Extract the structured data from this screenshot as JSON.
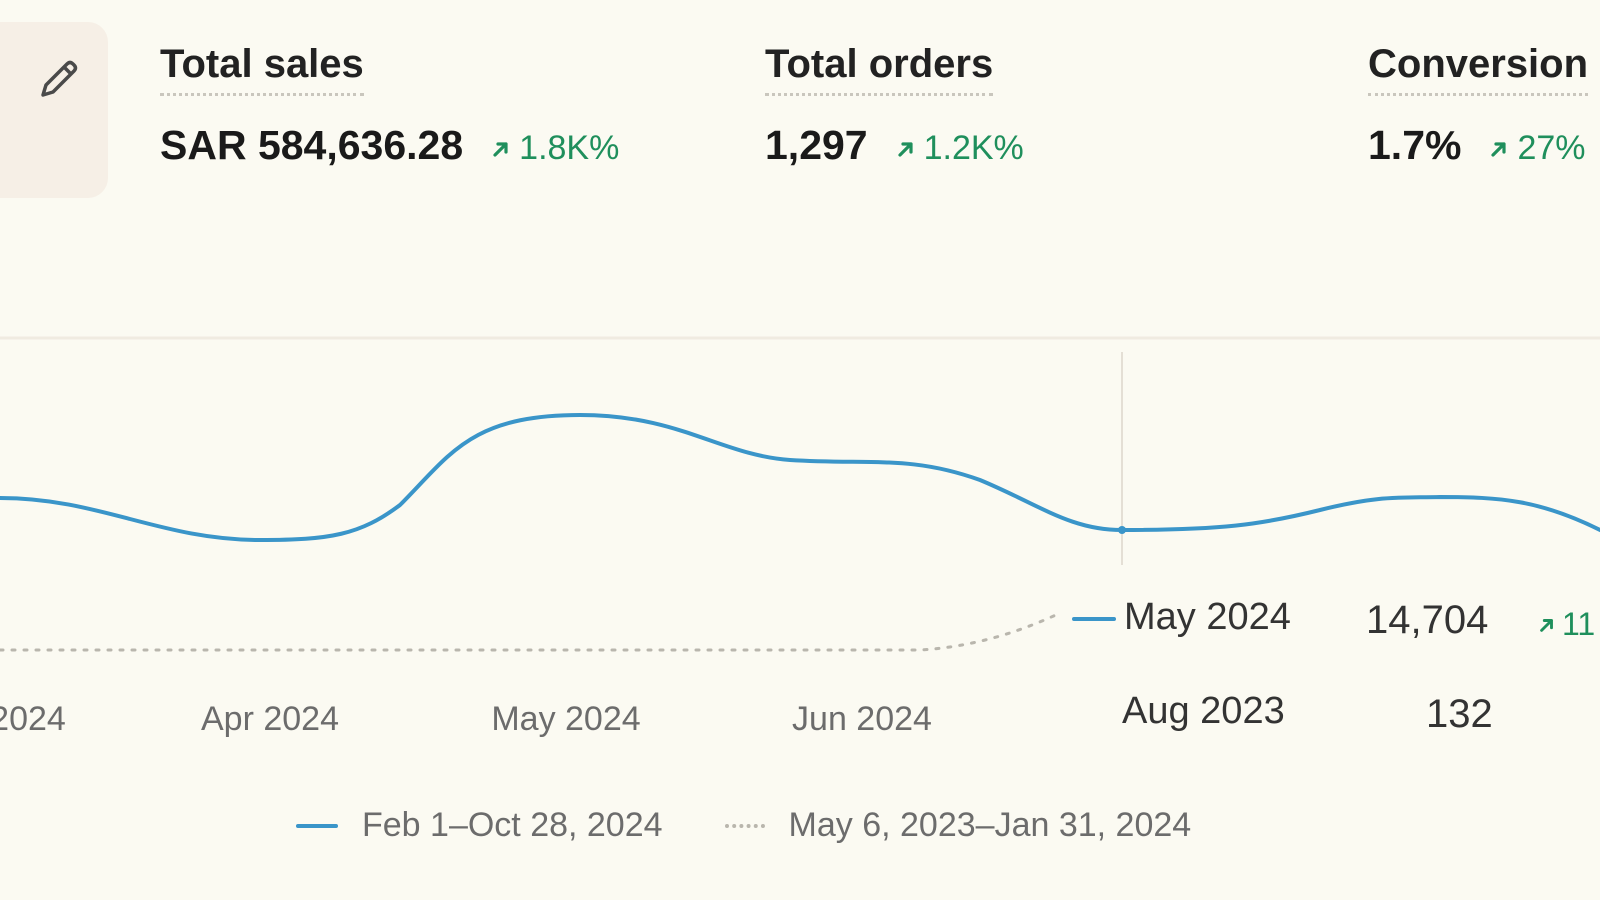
{
  "metrics": [
    {
      "title": "Total sales",
      "value": "SAR 584,636.28",
      "change": "1.8K%"
    },
    {
      "title": "Total orders",
      "value": "1,297",
      "change": "1.2K%"
    },
    {
      "title": "Conversion",
      "value": "1.7%",
      "change": "27%"
    }
  ],
  "colors": {
    "current": "#3a95c9",
    "previous": "#b9b6ad",
    "positive": "#1f8f5c",
    "background": "#fbfaf2"
  },
  "icons": {
    "edit": "pencil-icon",
    "trend": "arrow-up-right-icon"
  },
  "tooltip": {
    "current": {
      "label": "May 2024",
      "value": "14,704",
      "change": "11"
    },
    "previous": {
      "label": "Aug 2023",
      "value": "132"
    }
  },
  "chart_data": {
    "type": "line",
    "x_ticks": [
      "2024",
      "Apr 2024",
      "May 2024",
      "Jun 2024"
    ],
    "series": [
      {
        "name": "Feb 1–Oct 28, 2024",
        "style": "solid"
      },
      {
        "name": "May 6, 2023–Jan 31, 2024",
        "style": "dotted"
      }
    ],
    "grid": false,
    "legend": "bottom"
  }
}
